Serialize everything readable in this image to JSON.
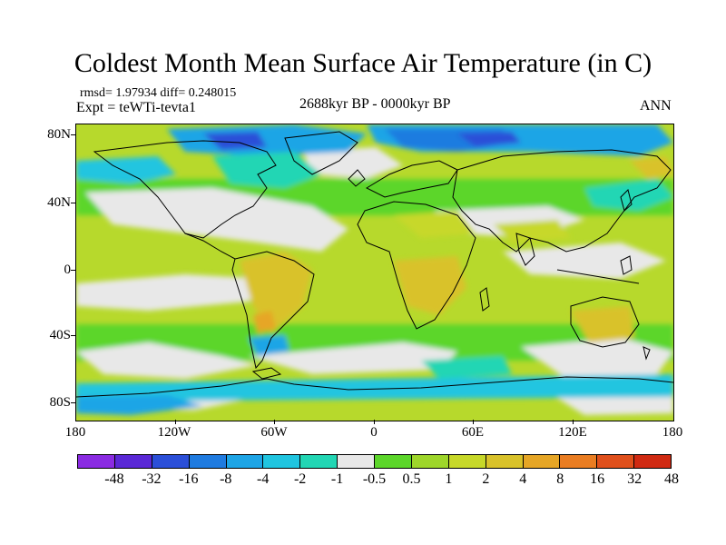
{
  "title": "Coldest Month Mean Surface Air Temperature (in C)",
  "stats": "rmsd= 1.97934  diff= 0.248015",
  "expt": "Expt = teWTi-tevta1",
  "period": "2688kyr BP - 0000kyr BP",
  "season": "ANN",
  "map": {
    "lat_labels": [
      "80N",
      "40N",
      "0",
      "40S",
      "80S"
    ],
    "lon_labels": [
      "180",
      "120W",
      "60W",
      "0",
      "60E",
      "120E",
      "180"
    ]
  },
  "legend": {
    "colors": [
      "#8a2be2",
      "#5a28d6",
      "#2b4fd8",
      "#1f7be0",
      "#1ea5e6",
      "#20c5e0",
      "#22d6b4",
      "#e8e8e8",
      "#5cd62a",
      "#9ed62a",
      "#c7d829",
      "#d9c22a",
      "#e6a626",
      "#ea7d22",
      "#e0501c",
      "#d02a12"
    ],
    "labels": [
      "-48",
      "-32",
      "-16",
      "-8",
      "-4",
      "-2",
      "-1",
      "-0.5",
      "0.5",
      "1",
      "2",
      "4",
      "8",
      "16",
      "32",
      "48"
    ]
  }
}
